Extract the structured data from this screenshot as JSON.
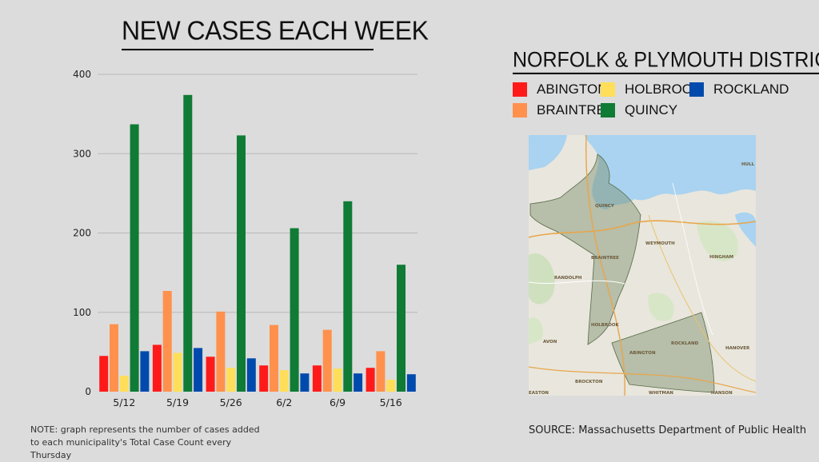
{
  "title": "NEW CASES EACH WEEK",
  "note": "NOTE: graph represents the number of cases added to each municipality's Total Case Count every Thursday",
  "district_title": "NORFOLK & PLYMOUTH DISTRICT",
  "source": "SOURCE: Massachusetts Department of Public Health",
  "map": {
    "labels": [
      "QUINCY",
      "WEYMOUTH",
      "BRAINTREE",
      "HINGHAM",
      "RANDOLPH",
      "HOLBROOK",
      "AVON",
      "ABINGTON",
      "ROCKLAND",
      "HANOVER",
      "BROCKTON",
      "WHITMAN",
      "HANSON",
      "EASTON",
      "HULL"
    ]
  },
  "chart_data": {
    "type": "bar",
    "title": "NEW CASES EACH WEEK",
    "xlabel": "",
    "ylabel": "",
    "categories": [
      "5/12",
      "5/19",
      "5/26",
      "6/2",
      "6/9",
      "5/16"
    ],
    "yticks": [
      "0",
      "100",
      "200",
      "300",
      "400"
    ],
    "ylim": [
      0,
      400
    ],
    "grid": true,
    "legend_position": "right",
    "series": [
      {
        "name": "ABINGTON",
        "color": "#ff1a1a",
        "values": [
          45,
          59,
          44,
          33,
          33,
          30
        ]
      },
      {
        "name": "BRAINTREE",
        "color": "#ff914d",
        "values": [
          85,
          127,
          101,
          84,
          78,
          51
        ]
      },
      {
        "name": "HOLBROOK",
        "color": "#ffde59",
        "values": [
          20,
          49,
          30,
          27,
          29,
          15
        ]
      },
      {
        "name": "QUINCY",
        "color": "#0f7b35",
        "values": [
          337,
          374,
          323,
          206,
          240,
          160
        ]
      },
      {
        "name": "ROCKLAND",
        "color": "#004aad",
        "values": [
          51,
          55,
          42,
          23,
          23,
          22
        ]
      }
    ]
  }
}
